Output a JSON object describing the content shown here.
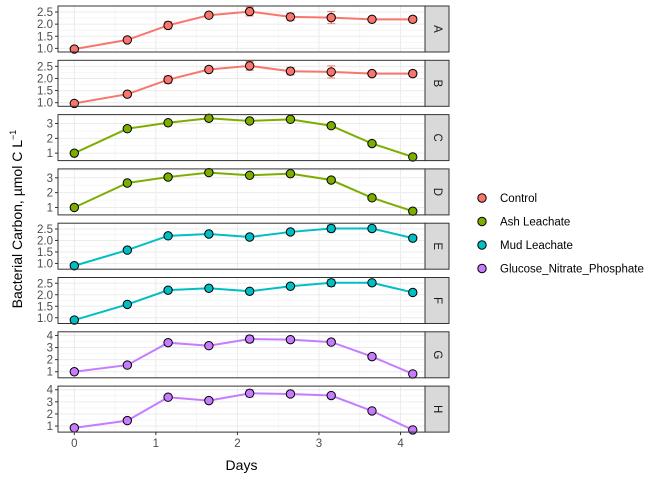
{
  "chart_data": {
    "type": "line",
    "xlabel": "Days",
    "ylabel_main": "Bacterial Carbon, µmol C L",
    "ylabel_sup": "−1",
    "x_ticks": [
      0,
      1,
      2,
      3,
      4
    ],
    "xlim": [
      -0.2,
      4.3
    ],
    "x": [
      0,
      0.65,
      1.15,
      1.65,
      2.15,
      2.65,
      3.15,
      3.65,
      4.15
    ],
    "error_bars": true,
    "grid": true,
    "legend_position": "right",
    "legend": [
      {
        "label": "Control",
        "color": "#F8766D"
      },
      {
        "label": "Ash Leachate",
        "color": "#7CAE00"
      },
      {
        "label": "Mud Leachate",
        "color": "#00BFC4"
      },
      {
        "label": "Glucose_Nitrate_Phosphate",
        "color": "#C77CFF"
      }
    ],
    "panels": [
      {
        "label": "A",
        "treatment": "Control",
        "color": "#F8766D",
        "ylim": [
          0.85,
          2.75
        ],
        "y_ticks": [
          "1.0",
          "1.5",
          "2.0",
          "2.5"
        ],
        "values": [
          0.97,
          1.35,
          1.95,
          2.37,
          2.52,
          2.3,
          2.27,
          2.2,
          2.2
        ],
        "errors": [
          0,
          0,
          0.15,
          0,
          0.18,
          0.15,
          0.25,
          0,
          0.12
        ]
      },
      {
        "label": "B",
        "treatment": "Control",
        "color": "#F8766D",
        "ylim": [
          0.85,
          2.75
        ],
        "y_ticks": [
          "1.0",
          "1.5",
          "2.0",
          "2.5"
        ],
        "values": [
          0.97,
          1.35,
          1.95,
          2.37,
          2.52,
          2.3,
          2.27,
          2.2,
          2.2
        ],
        "errors": [
          0,
          0,
          0.15,
          0,
          0.18,
          0.15,
          0.25,
          0,
          0.12
        ]
      },
      {
        "label": "C",
        "treatment": "Ash Leachate",
        "color": "#7CAE00",
        "ylim": [
          0.5,
          3.6
        ],
        "y_ticks": [
          "1",
          "2",
          "3"
        ],
        "values": [
          1.0,
          2.65,
          3.05,
          3.35,
          3.17,
          3.28,
          2.85,
          1.65,
          0.75
        ],
        "errors": [
          0,
          0,
          0,
          0.15,
          0,
          0,
          0,
          0,
          0
        ]
      },
      {
        "label": "D",
        "treatment": "Ash Leachate",
        "color": "#7CAE00",
        "ylim": [
          0.5,
          3.6
        ],
        "y_ticks": [
          "1",
          "2",
          "3"
        ],
        "values": [
          1.0,
          2.65,
          3.05,
          3.35,
          3.17,
          3.28,
          2.85,
          1.65,
          0.75
        ],
        "errors": [
          0,
          0,
          0,
          0.15,
          0,
          0,
          0,
          0,
          0
        ]
      },
      {
        "label": "E",
        "treatment": "Mud Leachate",
        "color": "#00BFC4",
        "ylim": [
          0.75,
          2.75
        ],
        "y_ticks": [
          "1.0",
          "1.5",
          "2.0",
          "2.5"
        ],
        "values": [
          0.9,
          1.58,
          2.2,
          2.28,
          2.15,
          2.37,
          2.52,
          2.52,
          2.1
        ],
        "errors": [
          0,
          0,
          0,
          0.1,
          0,
          0,
          0.15,
          0.1,
          0
        ]
      },
      {
        "label": "F",
        "treatment": "Mud Leachate",
        "color": "#00BFC4",
        "ylim": [
          0.75,
          2.75
        ],
        "y_ticks": [
          "1.0",
          "1.5",
          "2.0",
          "2.5"
        ],
        "values": [
          0.9,
          1.58,
          2.2,
          2.28,
          2.15,
          2.37,
          2.52,
          2.52,
          2.1
        ],
        "errors": [
          0,
          0,
          0,
          0.1,
          0,
          0,
          0.15,
          0.1,
          0
        ]
      },
      {
        "label": "G",
        "treatment": "Glucose_Nitrate_Phosphate",
        "color": "#C77CFF",
        "ylim": [
          0.5,
          4.3
        ],
        "y_ticks": [
          "1",
          "2",
          "3",
          "4"
        ],
        "values": [
          1.0,
          1.55,
          3.4,
          3.15,
          3.7,
          3.65,
          3.45,
          2.25,
          0.82
        ],
        "errors": [
          0,
          0,
          0,
          0,
          0.3,
          0.2,
          0.15,
          0,
          0
        ]
      },
      {
        "label": "H",
        "treatment": "Glucose_Nitrate_Phosphate",
        "color": "#C77CFF",
        "ylim": [
          0.5,
          4.3
        ],
        "y_ticks": [
          "1",
          "2",
          "3",
          "4"
        ],
        "values": [
          0.85,
          1.45,
          3.38,
          3.1,
          3.7,
          3.65,
          3.52,
          2.25,
          0.68
        ],
        "errors": [
          0,
          0,
          0,
          0,
          0.3,
          0.2,
          0.15,
          0,
          0
        ]
      }
    ]
  }
}
